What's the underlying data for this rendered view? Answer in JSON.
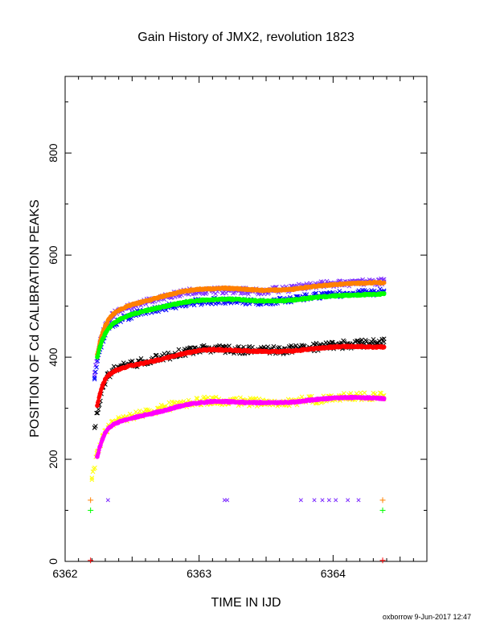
{
  "chart_data": {
    "type": "scatter",
    "title": "Gain History of JMX2, revolution 1823",
    "xlabel": "TIME IN IJD",
    "ylabel": "POSITION OF Cd CALIBRATION PEAKS",
    "xlim": [
      6362,
      6364.7
    ],
    "ylim": [
      0,
      950
    ],
    "xticks": [
      6362,
      6363,
      6364
    ],
    "yticks": [
      0,
      200,
      400,
      600,
      800
    ],
    "grid": false,
    "legend": "none",
    "footer": "oxborrow  9-Jun-2017 12:47",
    "series": [
      {
        "color": "#7f2fff",
        "marker": "x",
        "scatter": 6,
        "points": [
          [
            6362.22,
            370
          ],
          [
            6362.26,
            430
          ],
          [
            6362.3,
            460
          ],
          [
            6362.35,
            480
          ],
          [
            6362.4,
            492
          ],
          [
            6362.5,
            500
          ],
          [
            6362.6,
            508
          ],
          [
            6362.7,
            515
          ],
          [
            6362.8,
            522
          ],
          [
            6362.9,
            528
          ],
          [
            6363.0,
            530
          ],
          [
            6363.1,
            530
          ],
          [
            6363.2,
            531
          ],
          [
            6363.3,
            530
          ],
          [
            6363.4,
            529
          ],
          [
            6363.5,
            530
          ],
          [
            6363.6,
            532
          ],
          [
            6363.7,
            535
          ],
          [
            6363.8,
            540
          ],
          [
            6363.9,
            542
          ],
          [
            6364.0,
            544
          ],
          [
            6364.1,
            545
          ],
          [
            6364.2,
            546
          ],
          [
            6364.3,
            547
          ],
          [
            6364.38,
            548
          ]
        ]
      },
      {
        "color": "#0000ff",
        "marker": "x",
        "scatter": 6,
        "points": [
          [
            6362.22,
            360
          ],
          [
            6362.26,
            415
          ],
          [
            6362.3,
            448
          ],
          [
            6362.35,
            462
          ],
          [
            6362.4,
            472
          ],
          [
            6362.5,
            482
          ],
          [
            6362.6,
            490
          ],
          [
            6362.7,
            495
          ],
          [
            6362.8,
            500
          ],
          [
            6362.9,
            505
          ],
          [
            6363.0,
            508
          ],
          [
            6363.1,
            510
          ],
          [
            6363.2,
            511
          ],
          [
            6363.3,
            510
          ],
          [
            6363.4,
            508
          ],
          [
            6363.5,
            509
          ],
          [
            6363.6,
            511
          ],
          [
            6363.7,
            514
          ],
          [
            6363.8,
            518
          ],
          [
            6363.9,
            520
          ],
          [
            6364.0,
            523
          ],
          [
            6364.1,
            525
          ],
          [
            6364.2,
            526
          ],
          [
            6364.3,
            527
          ],
          [
            6364.38,
            528
          ]
        ]
      },
      {
        "color": "#ff8000",
        "marker": "dot",
        "scatter": 1.5,
        "points": [
          [
            6362.24,
            405
          ],
          [
            6362.26,
            430
          ],
          [
            6362.28,
            448
          ],
          [
            6362.3,
            462
          ],
          [
            6362.33,
            476
          ],
          [
            6362.36,
            485
          ],
          [
            6362.4,
            492
          ],
          [
            6362.45,
            498
          ],
          [
            6362.5,
            503
          ],
          [
            6362.6,
            510
          ],
          [
            6362.7,
            517
          ],
          [
            6362.8,
            524
          ],
          [
            6362.9,
            530
          ],
          [
            6363.0,
            533
          ],
          [
            6363.1,
            534
          ],
          [
            6363.2,
            535
          ],
          [
            6363.3,
            534
          ],
          [
            6363.4,
            532
          ],
          [
            6363.5,
            531
          ],
          [
            6363.6,
            532
          ],
          [
            6363.7,
            533
          ],
          [
            6363.8,
            537
          ],
          [
            6363.9,
            540
          ],
          [
            6364.0,
            542
          ],
          [
            6364.1,
            544
          ],
          [
            6364.2,
            545
          ],
          [
            6364.3,
            546
          ],
          [
            6364.38,
            546
          ]
        ]
      },
      {
        "color": "#00ff00",
        "marker": "dot",
        "scatter": 1.5,
        "points": [
          [
            6362.24,
            400
          ],
          [
            6362.26,
            420
          ],
          [
            6362.28,
            435
          ],
          [
            6362.3,
            447
          ],
          [
            6362.33,
            458
          ],
          [
            6362.36,
            466
          ],
          [
            6362.4,
            473
          ],
          [
            6362.45,
            479
          ],
          [
            6362.5,
            484
          ],
          [
            6362.6,
            491
          ],
          [
            6362.7,
            497
          ],
          [
            6362.8,
            503
          ],
          [
            6362.9,
            508
          ],
          [
            6363.0,
            511
          ],
          [
            6363.1,
            513
          ],
          [
            6363.2,
            514
          ],
          [
            6363.3,
            513
          ],
          [
            6363.4,
            511
          ],
          [
            6363.5,
            510
          ],
          [
            6363.6,
            510
          ],
          [
            6363.7,
            512
          ],
          [
            6363.8,
            515
          ],
          [
            6363.9,
            518
          ],
          [
            6364.0,
            520
          ],
          [
            6364.1,
            521
          ],
          [
            6364.2,
            522
          ],
          [
            6364.3,
            523
          ],
          [
            6364.38,
            524
          ]
        ]
      },
      {
        "color": "#000000",
        "marker": "x",
        "scatter": 8,
        "points": [
          [
            6362.22,
            262
          ],
          [
            6362.25,
            305
          ],
          [
            6362.28,
            340
          ],
          [
            6362.32,
            365
          ],
          [
            6362.36,
            375
          ],
          [
            6362.4,
            380
          ],
          [
            6362.5,
            387
          ],
          [
            6362.6,
            392
          ],
          [
            6362.7,
            398
          ],
          [
            6362.8,
            405
          ],
          [
            6362.9,
            410
          ],
          [
            6363.0,
            415
          ],
          [
            6363.1,
            416
          ],
          [
            6363.2,
            415
          ],
          [
            6363.3,
            414
          ],
          [
            6363.4,
            413
          ],
          [
            6363.5,
            413
          ],
          [
            6363.6,
            414
          ],
          [
            6363.7,
            415
          ],
          [
            6363.8,
            418
          ],
          [
            6363.9,
            421
          ],
          [
            6364.0,
            423
          ],
          [
            6364.1,
            425
          ],
          [
            6364.2,
            426
          ],
          [
            6364.3,
            428
          ],
          [
            6364.38,
            430
          ]
        ]
      },
      {
        "color": "#ff0000",
        "marker": "dot",
        "scatter": 1.5,
        "points": [
          [
            6362.24,
            305
          ],
          [
            6362.26,
            328
          ],
          [
            6362.28,
            345
          ],
          [
            6362.3,
            357
          ],
          [
            6362.33,
            366
          ],
          [
            6362.36,
            372
          ],
          [
            6362.4,
            376
          ],
          [
            6362.45,
            380
          ],
          [
            6362.5,
            384
          ],
          [
            6362.6,
            389
          ],
          [
            6362.7,
            395
          ],
          [
            6362.8,
            402
          ],
          [
            6362.9,
            408
          ],
          [
            6363.0,
            413
          ],
          [
            6363.1,
            415
          ],
          [
            6363.2,
            414
          ],
          [
            6363.3,
            413
          ],
          [
            6363.4,
            412
          ],
          [
            6363.5,
            411
          ],
          [
            6363.6,
            411
          ],
          [
            6363.7,
            412
          ],
          [
            6363.8,
            415
          ],
          [
            6363.9,
            418
          ],
          [
            6364.0,
            420
          ],
          [
            6364.1,
            421
          ],
          [
            6364.2,
            421
          ],
          [
            6364.3,
            420
          ],
          [
            6364.38,
            420
          ]
        ]
      },
      {
        "color": "#ffff00",
        "marker": "x",
        "scatter": 8,
        "points": [
          [
            6362.2,
            160
          ],
          [
            6362.24,
            215
          ],
          [
            6362.28,
            245
          ],
          [
            6362.32,
            262
          ],
          [
            6362.36,
            272
          ],
          [
            6362.4,
            278
          ],
          [
            6362.5,
            285
          ],
          [
            6362.6,
            291
          ],
          [
            6362.7,
            298
          ],
          [
            6362.8,
            305
          ],
          [
            6362.9,
            310
          ],
          [
            6363.0,
            314
          ],
          [
            6363.1,
            315
          ],
          [
            6363.2,
            314
          ],
          [
            6363.3,
            313
          ],
          [
            6363.4,
            312
          ],
          [
            6363.5,
            311
          ],
          [
            6363.6,
            312
          ],
          [
            6363.7,
            313
          ],
          [
            6363.8,
            316
          ],
          [
            6363.9,
            318
          ],
          [
            6364.0,
            320
          ],
          [
            6364.1,
            322
          ],
          [
            6364.2,
            323
          ],
          [
            6364.3,
            324
          ],
          [
            6364.38,
            325
          ]
        ]
      },
      {
        "color": "#ff00ff",
        "marker": "dot",
        "scatter": 1.5,
        "points": [
          [
            6362.24,
            205
          ],
          [
            6362.26,
            225
          ],
          [
            6362.28,
            240
          ],
          [
            6362.3,
            252
          ],
          [
            6362.33,
            262
          ],
          [
            6362.36,
            268
          ],
          [
            6362.4,
            273
          ],
          [
            6362.45,
            277
          ],
          [
            6362.5,
            281
          ],
          [
            6362.6,
            287
          ],
          [
            6362.7,
            293
          ],
          [
            6362.8,
            300
          ],
          [
            6362.9,
            307
          ],
          [
            6363.0,
            311
          ],
          [
            6363.1,
            313
          ],
          [
            6363.2,
            313
          ],
          [
            6363.3,
            312
          ],
          [
            6363.4,
            311
          ],
          [
            6363.5,
            311
          ],
          [
            6363.6,
            311
          ],
          [
            6363.7,
            312
          ],
          [
            6363.8,
            315
          ],
          [
            6363.9,
            318
          ],
          [
            6364.0,
            320
          ],
          [
            6364.1,
            321
          ],
          [
            6364.2,
            321
          ],
          [
            6364.3,
            320
          ],
          [
            6364.38,
            319
          ]
        ]
      }
    ],
    "markers": [
      {
        "color": "#ff8000",
        "symbol": "+",
        "x": 6362.19,
        "y": 120
      },
      {
        "color": "#ff8000",
        "symbol": "+",
        "x": 6364.37,
        "y": 120
      },
      {
        "color": "#00ff00",
        "symbol": "+",
        "x": 6362.19,
        "y": 100
      },
      {
        "color": "#00ff00",
        "symbol": "+",
        "x": 6364.37,
        "y": 100
      },
      {
        "color": "#7f2fff",
        "symbol": "x",
        "x": 6362.32,
        "y": 120
      },
      {
        "color": "#7f2fff",
        "symbol": "x",
        "x": 6363.19,
        "y": 120
      },
      {
        "color": "#7f2fff",
        "symbol": "x",
        "x": 6363.21,
        "y": 120
      },
      {
        "color": "#7f2fff",
        "symbol": "x",
        "x": 6363.76,
        "y": 120
      },
      {
        "color": "#7f2fff",
        "symbol": "x",
        "x": 6363.86,
        "y": 120
      },
      {
        "color": "#7f2fff",
        "symbol": "x",
        "x": 6363.92,
        "y": 120
      },
      {
        "color": "#7f2fff",
        "symbol": "x",
        "x": 6363.97,
        "y": 120
      },
      {
        "color": "#7f2fff",
        "symbol": "x",
        "x": 6364.02,
        "y": 120
      },
      {
        "color": "#7f2fff",
        "symbol": "x",
        "x": 6364.11,
        "y": 120
      },
      {
        "color": "#7f2fff",
        "symbol": "x",
        "x": 6364.19,
        "y": 120
      },
      {
        "color": "#ff0000",
        "symbol": "+",
        "x": 6362.19,
        "y": 2
      },
      {
        "color": "#ff0000",
        "symbol": "+",
        "x": 6364.37,
        "y": 2
      }
    ]
  }
}
